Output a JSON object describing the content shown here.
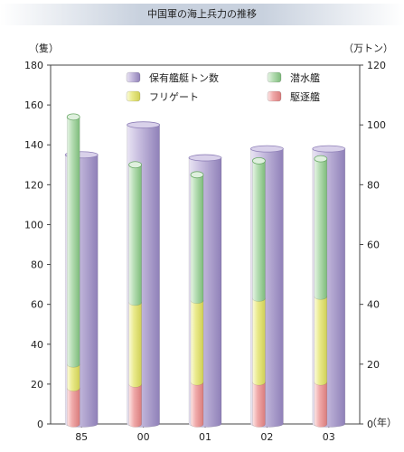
{
  "chart_data": {
    "type": "bar",
    "title": "中国軍の海上兵力の推移",
    "categories": [
      "85",
      "00",
      "01",
      "02",
      "03"
    ],
    "y_left": {
      "label": "（隻）",
      "ylim": [
        0,
        180
      ],
      "ticks": [
        0,
        20,
        40,
        60,
        80,
        100,
        120,
        140,
        160,
        180
      ]
    },
    "y_right": {
      "label": "（万トン）",
      "ylim": [
        0,
        120
      ],
      "ticks": [
        0,
        20,
        40,
        60,
        80,
        100,
        120
      ]
    },
    "x_unit": "（年）",
    "legend_position": "top-right",
    "tonnage_series": {
      "name": "保有艦艇トン数",
      "axis": "right",
      "color": "#b7acd2",
      "values": [
        90,
        100,
        89,
        92,
        92
      ]
    },
    "stacked_series": [
      {
        "name": "駆逐艦",
        "axis": "left",
        "color": "#f0aaaa",
        "values": [
          18,
          20,
          21,
          21,
          21
        ]
      },
      {
        "name": "フリゲート",
        "axis": "left",
        "color": "#eaea8c",
        "values": [
          12,
          41,
          41,
          42,
          43
        ]
      },
      {
        "name": "潜水艦",
        "axis": "left",
        "color": "#b6ddb4",
        "values": [
          124,
          69,
          63,
          69,
          69
        ]
      }
    ]
  }
}
